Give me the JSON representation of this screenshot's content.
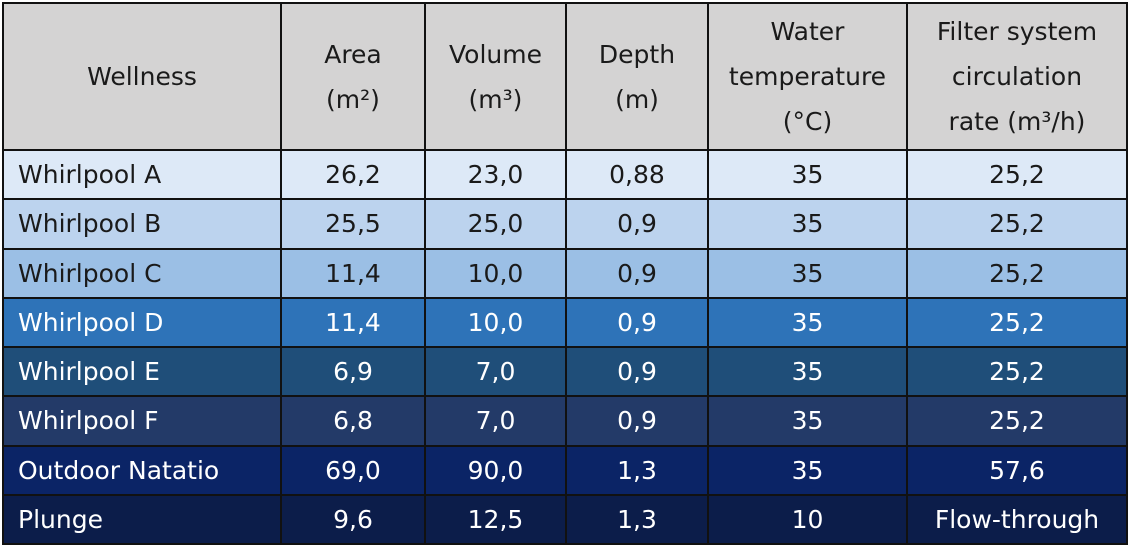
{
  "header": {
    "wellness": "Wellness",
    "area": [
      "Area",
      "(m²)"
    ],
    "volume": [
      "Volume",
      "(m³)"
    ],
    "depth": [
      "Depth",
      "(m)"
    ],
    "water_temperature": [
      "Water",
      "temperature",
      "(°C)"
    ],
    "filter_rate": [
      "Filter system",
      "circulation",
      "rate (m³/h)"
    ]
  },
  "rows": [
    {
      "name": "Whirlpool A",
      "area": "26,2",
      "volume": "23,0",
      "depth": "0,88",
      "temp": "35",
      "rate": "25,2",
      "bg": "#dde9f7",
      "fg": "#1a1a1a"
    },
    {
      "name": "Whirlpool B",
      "area": "25,5",
      "volume": "25,0",
      "depth": "0,9",
      "temp": "35",
      "rate": "25,2",
      "bg": "#bcd3ee",
      "fg": "#1a1a1a"
    },
    {
      "name": "Whirlpool C",
      "area": "11,4",
      "volume": "10,0",
      "depth": "0,9",
      "temp": "35",
      "rate": "25,2",
      "bg": "#9bbfe5",
      "fg": "#1a1a1a"
    },
    {
      "name": "Whirlpool D",
      "area": "11,4",
      "volume": "10,0",
      "depth": "0,9",
      "temp": "35",
      "rate": "25,2",
      "bg": "#2e73b8",
      "fg": "#ffffff"
    },
    {
      "name": "Whirlpool E",
      "area": "6,9",
      "volume": "7,0",
      "depth": "0,9",
      "temp": "35",
      "rate": "25,2",
      "bg": "#1f4e79",
      "fg": "#ffffff"
    },
    {
      "name": "Whirlpool F",
      "area": "6,8",
      "volume": "7,0",
      "depth": "0,9",
      "temp": "35",
      "rate": "25,2",
      "bg": "#233a68",
      "fg": "#ffffff"
    },
    {
      "name": "Outdoor Natatio",
      "area": "69,0",
      "volume": "90,0",
      "depth": "1,3",
      "temp": "35",
      "rate": "57,6",
      "bg": "#0b2466",
      "fg": "#ffffff"
    },
    {
      "name": "Plunge",
      "area": "9,6",
      "volume": "12,5",
      "depth": "1,3",
      "temp": "10",
      "rate": "Flow-through",
      "bg": "#0c1d4a",
      "fg": "#ffffff"
    }
  ]
}
